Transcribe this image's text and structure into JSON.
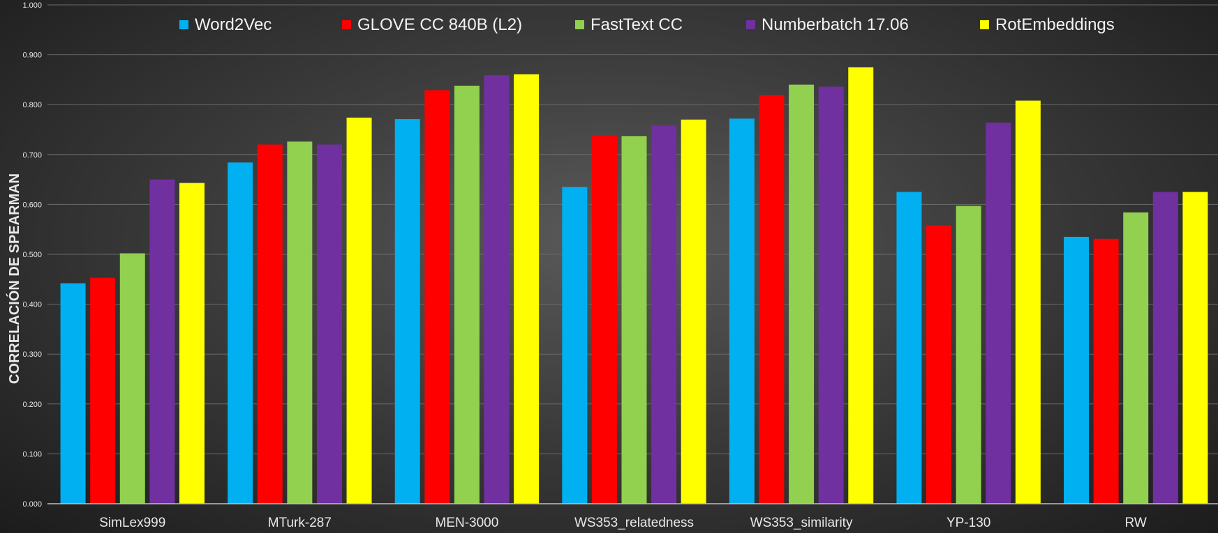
{
  "chart_data": {
    "type": "bar",
    "title": "",
    "xlabel": "",
    "ylabel": "CORRELACIÓN DE SPEARMAN",
    "ylim": [
      0,
      1
    ],
    "yticks": [
      "0.000",
      "0.100",
      "0.200",
      "0.300",
      "0.400",
      "0.500",
      "0.600",
      "0.700",
      "0.800",
      "0.900",
      "1.000"
    ],
    "grid": true,
    "legend_position": "top",
    "categories": [
      "SimLex999",
      "MTurk-287",
      "MEN-3000",
      "WS353_relatedness",
      "WS353_similarity",
      "YP-130",
      "RW"
    ],
    "series": [
      {
        "name": "Word2Vec",
        "color": "#00b0f0",
        "values": [
          0.442,
          0.684,
          0.771,
          0.635,
          0.772,
          0.625,
          0.535
        ]
      },
      {
        "name": "GLOVE CC 840B (L2)",
        "color": "#ff0000",
        "values": [
          0.453,
          0.72,
          0.829,
          0.738,
          0.819,
          0.558,
          0.531
        ]
      },
      {
        "name": "FastText CC",
        "color": "#92d050",
        "values": [
          0.502,
          0.726,
          0.838,
          0.737,
          0.84,
          0.597,
          0.584
        ]
      },
      {
        "name": "Numberbatch 17.06",
        "color": "#7030a0",
        "values": [
          0.65,
          0.72,
          0.859,
          0.758,
          0.836,
          0.764,
          0.625
        ]
      },
      {
        "name": "RotEmbeddings",
        "color": "#ffff00",
        "values": [
          0.643,
          0.774,
          0.861,
          0.77,
          0.875,
          0.808,
          0.625
        ]
      }
    ]
  }
}
